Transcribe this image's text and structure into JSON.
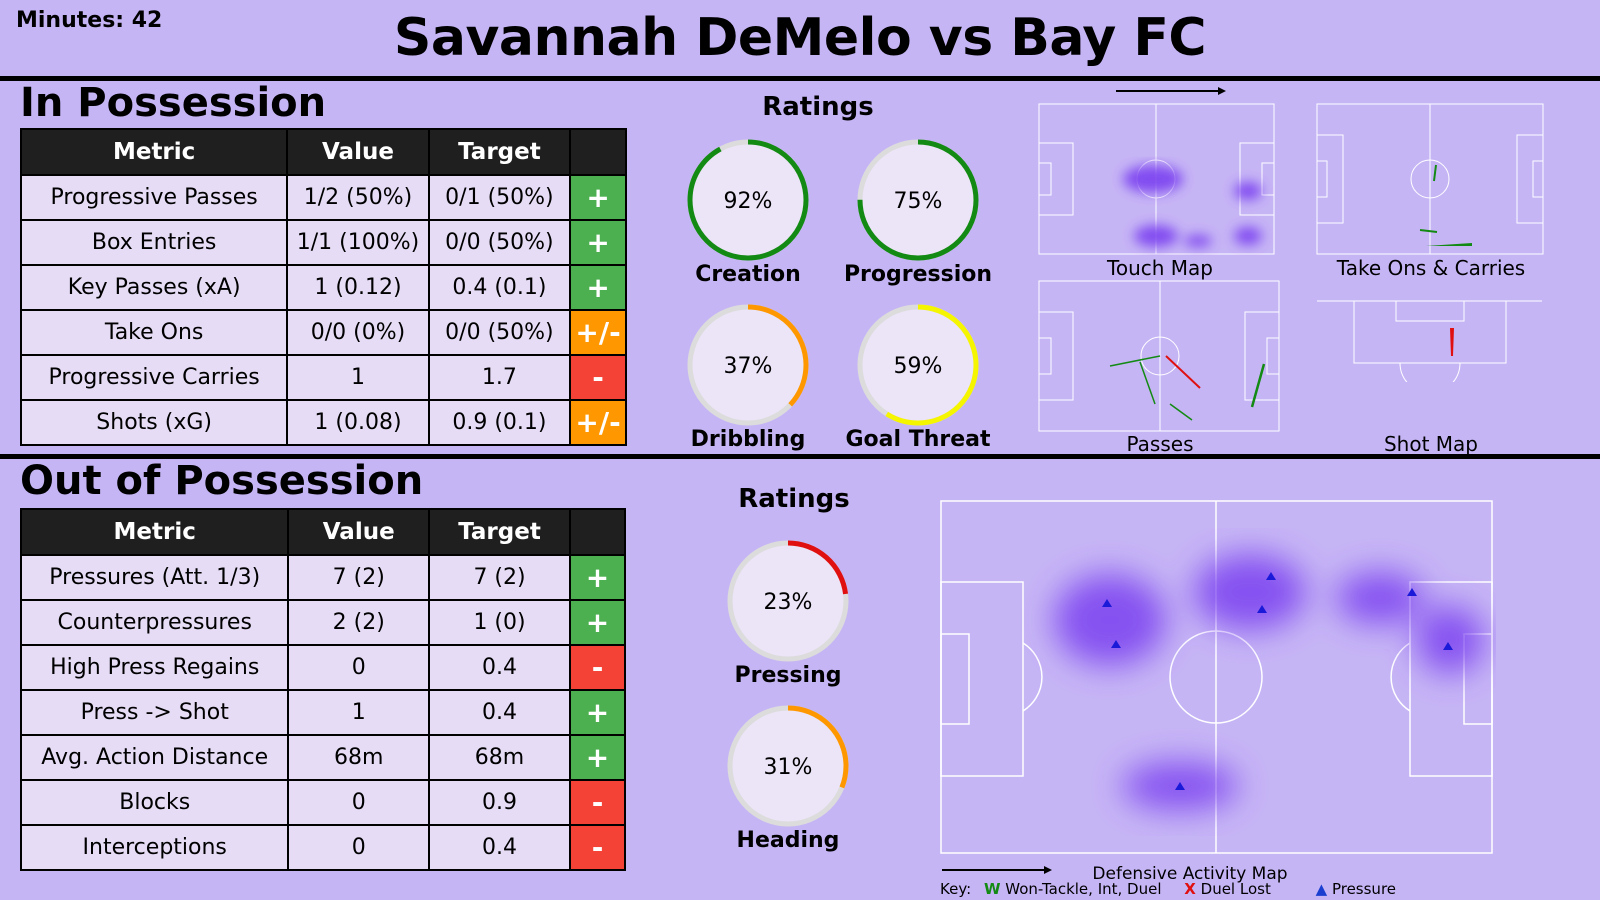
{
  "header": {
    "minutes": "Minutes: 42",
    "title": "Savannah DeMelo vs Bay FC"
  },
  "in_possession": {
    "heading": "In Possession",
    "columns": [
      "Metric",
      "Value",
      "Target",
      ""
    ],
    "rows": [
      {
        "metric": "Progressive Passes",
        "value": "1/2 (50%)",
        "target": "0/1 (50%)",
        "status": "+",
        "status_color": "#4caf50"
      },
      {
        "metric": "Box Entries",
        "value": "1/1 (100%)",
        "target": "0/0 (50%)",
        "status": "+",
        "status_color": "#4caf50"
      },
      {
        "metric": "Key Passes (xA)",
        "value": "1 (0.12)",
        "target": "0.4 (0.1)",
        "status": "+",
        "status_color": "#4caf50"
      },
      {
        "metric": "Take Ons",
        "value": "0/0 (0%)",
        "target": "0/0 (50%)",
        "status": "+/-",
        "status_color": "#ff9800"
      },
      {
        "metric": "Progressive Carries",
        "value": "1",
        "target": "1.7",
        "status": "-",
        "status_color": "#f44336"
      },
      {
        "metric": "Shots (xG)",
        "value": "1 (0.08)",
        "target": "0.9 (0.1)",
        "status": "+/-",
        "status_color": "#ff9800"
      }
    ],
    "ratings_title": "Ratings",
    "ratings": [
      {
        "label": "Creation",
        "value": "92%",
        "fraction": 0.92,
        "color": "#138a13"
      },
      {
        "label": "Progression",
        "value": "75%",
        "fraction": 0.75,
        "color": "#138a13"
      },
      {
        "label": "Dribbling",
        "value": "37%",
        "fraction": 0.37,
        "color": "#ff9800"
      },
      {
        "label": "Goal Threat",
        "value": "59%",
        "fraction": 0.59,
        "color": "#f5f500"
      }
    ],
    "maps": [
      "Touch Map",
      "Take Ons & Carries",
      "Passes",
      "Shot Map"
    ]
  },
  "out_possession": {
    "heading": "Out of Possession",
    "columns": [
      "Metric",
      "Value",
      "Target",
      ""
    ],
    "rows": [
      {
        "metric": "Pressures (Att. 1/3)",
        "value": "7 (2)",
        "target": "7 (2)",
        "status": "+",
        "status_color": "#4caf50"
      },
      {
        "metric": "Counterpressures",
        "value": "2 (2)",
        "target": "1 (0)",
        "status": "+",
        "status_color": "#4caf50"
      },
      {
        "metric": "High Press Regains",
        "value": "0",
        "target": "0.4",
        "status": "-",
        "status_color": "#f44336"
      },
      {
        "metric": "Press -> Shot",
        "value": "1",
        "target": "0.4",
        "status": "+",
        "status_color": "#4caf50"
      },
      {
        "metric": "Avg. Action Distance",
        "value": "68m",
        "target": "68m",
        "status": "+",
        "status_color": "#4caf50"
      },
      {
        "metric": "Blocks",
        "value": "0",
        "target": "0.9",
        "status": "-",
        "status_color": "#f44336"
      },
      {
        "metric": "Interceptions",
        "value": "0",
        "target": "0.4",
        "status": "-",
        "status_color": "#f44336"
      }
    ],
    "ratings_title": "Ratings",
    "ratings": [
      {
        "label": "Pressing",
        "value": "23%",
        "fraction": 0.23,
        "color": "#e01010"
      },
      {
        "label": "Heading",
        "value": "31%",
        "fraction": 0.31,
        "color": "#ff9800"
      }
    ],
    "map_title": "Defensive Activity Map",
    "key": {
      "prefix": "Key:",
      "won_symbol": "W",
      "won": "Won-Tackle, Int, Duel",
      "lost_symbol": "X",
      "lost": "Duel Lost",
      "pressure_symbol": "▲",
      "pressure": "Pressure"
    }
  }
}
